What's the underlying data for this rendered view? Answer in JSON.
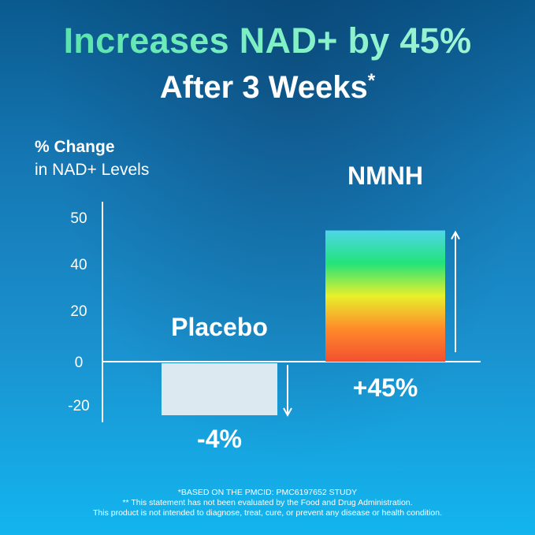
{
  "headline": "Increases NAD+ by 45%",
  "subheadline": "After 3 Weeks",
  "subheadline_mark": "*",
  "y_title": "% Change",
  "y_subtitle": "in NAD+ Levels",
  "colors": {
    "placebo_fill": "#dde9f1",
    "nmnh_gradient": [
      "#4fd6e8",
      "#22e37a",
      "#e8f02a",
      "#ff8a2a",
      "#f25030"
    ],
    "axis": "#ffffff"
  },
  "chart_data": {
    "type": "bar",
    "categories": [
      "Placebo",
      "NMNH"
    ],
    "values": [
      -4,
      45
    ],
    "value_labels": [
      "-4%",
      "+45%"
    ],
    "y_ticks": [
      50,
      40,
      20,
      0,
      -20
    ],
    "ylabel": "% Change in NAD+ Levels",
    "grid": false,
    "legend": "none"
  },
  "footer": {
    "line1": "*BASED ON THE PMCID: PMC6197652 STUDY",
    "line2": "** This statement has not been evaluated by the Food and Drug Administration.",
    "line3": "This product is not intended to diagnose, treat, cure, or prevent any disease or health condition."
  }
}
